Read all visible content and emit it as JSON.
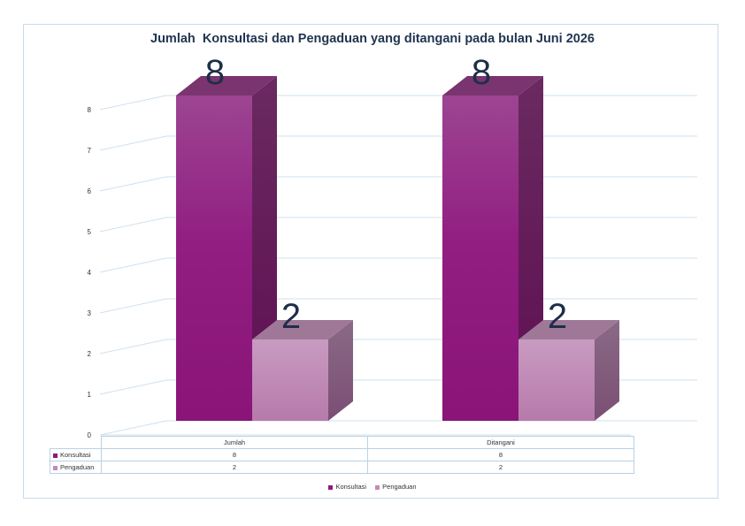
{
  "chart_data": {
    "type": "bar",
    "title": "Jumlah  Konsultasi dan Pengaduan yang ditangani pada bulan Juni 2026",
    "categories": [
      "Jumlah",
      "Ditangani"
    ],
    "series": [
      {
        "name": "Konsultasi",
        "values": [
          8,
          8
        ],
        "color": "#8e1a7c"
      },
      {
        "name": "Pengaduan",
        "values": [
          2,
          2
        ],
        "color": "#c48ab8"
      }
    ],
    "ylim": [
      0,
      8
    ],
    "yticks": [
      "0",
      "1",
      "2",
      "3",
      "4",
      "5",
      "6",
      "7",
      "8"
    ],
    "grid": true,
    "data_labels": [
      "8",
      "2",
      "8",
      "2"
    ],
    "data_table": {
      "rows": [
        {
          "name": "Konsultasi",
          "values": [
            "8",
            "8"
          ]
        },
        {
          "name": "Pengaduan",
          "values": [
            "2",
            "2"
          ]
        }
      ]
    },
    "legend": {
      "position": "bottom",
      "items": [
        "Konsultasi",
        "Pengaduan"
      ]
    }
  }
}
